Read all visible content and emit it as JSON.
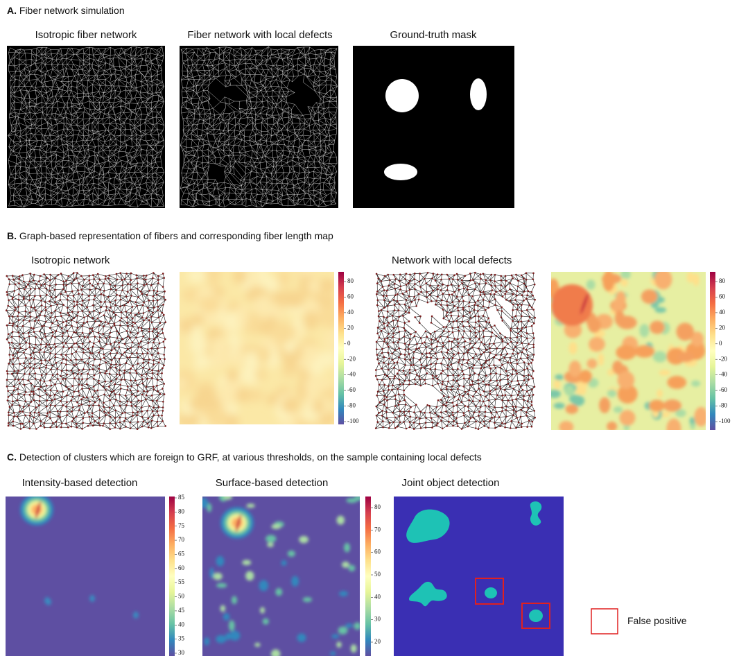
{
  "panels": [
    {
      "label": "A.",
      "title": "Fiber network simulation",
      "titles": [
        "Isotropic fiber network",
        "Fiber network with local defects",
        "Ground-truth mask"
      ]
    },
    {
      "label": "B.",
      "title": "Graph-based representation of fibers and corresponding fiber length map",
      "titles": [
        "Isotropic network",
        "Network with local defects"
      ],
      "colorbars": [
        [
          80,
          60,
          40,
          20,
          0,
          -20,
          -40,
          -60,
          -80,
          -100
        ],
        [
          80,
          60,
          40,
          20,
          0,
          -20,
          -40,
          -60,
          -80,
          -100
        ]
      ]
    },
    {
      "label": "C.",
      "title": "Detection of clusters which are foreign to GRF, at various thresholds, on the sample containing local defects",
      "titles": [
        "Intensity-based detection",
        "Surface-based detection",
        "Joint object detection"
      ],
      "colorbars": [
        [
          85,
          80,
          75,
          70,
          65,
          60,
          55,
          50,
          45,
          40,
          35,
          30
        ],
        [
          80,
          70,
          60,
          50,
          40,
          30,
          20
        ]
      ]
    }
  ],
  "legend": {
    "label": "False positive"
  }
}
